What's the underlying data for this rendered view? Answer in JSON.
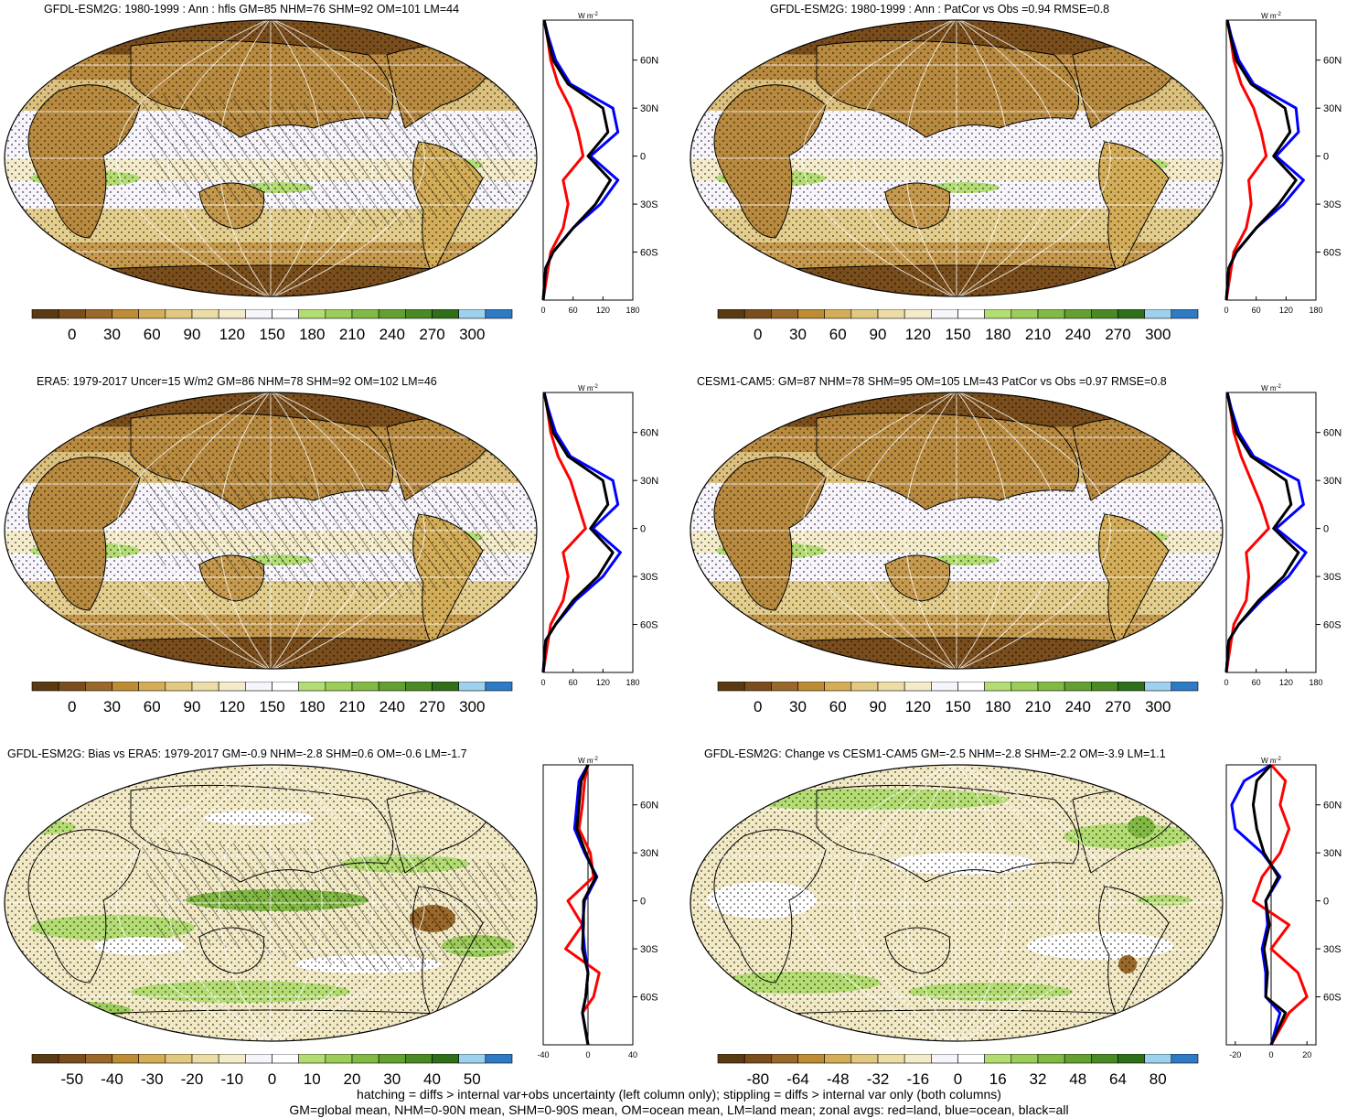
{
  "panels": [
    {
      "id": "p1",
      "title": "GFDL-ESM2G: 1980-1999 : Ann : hfls GM=85 NHM=76 SHM=92 OM=101 LM=44",
      "kind": "climo",
      "hatched": true,
      "zonal": {
        "xlim": [
          0,
          180
        ],
        "xticks": [
          "0",
          "60",
          "120",
          "180"
        ],
        "unit": "W m-2",
        "lat": [
          -90,
          -70,
          -60,
          -45,
          -30,
          -15,
          0,
          15,
          30,
          45,
          60,
          75,
          85
        ],
        "land": [
          0,
          10,
          15,
          40,
          50,
          40,
          80,
          70,
          55,
          30,
          15,
          8,
          2
        ],
        "ocean": [
          0,
          5,
          20,
          60,
          115,
          150,
          95,
          150,
          140,
          55,
          25,
          10,
          2
        ],
        "all": [
          0,
          5,
          20,
          60,
          105,
          135,
          90,
          130,
          120,
          50,
          20,
          8,
          2
        ]
      },
      "colorbar": [
        "0",
        "30",
        "60",
        "90",
        "120",
        "150",
        "180",
        "210",
        "240",
        "270",
        "300"
      ]
    },
    {
      "id": "p2",
      "title": "GFDL-ESM2G: 1980-1999 : Ann : PatCor vs Obs =0.94 RMSE=0.8",
      "kind": "climo",
      "hatched": false,
      "zonal": {
        "xlim": [
          0,
          180
        ],
        "xticks": [
          "0",
          "60",
          "120",
          "180"
        ],
        "unit": "W m-2",
        "lat": [
          -90,
          -70,
          -60,
          -45,
          -30,
          -15,
          0,
          15,
          30,
          45,
          60,
          75,
          85
        ],
        "land": [
          0,
          10,
          15,
          40,
          50,
          45,
          80,
          70,
          55,
          30,
          15,
          8,
          2
        ],
        "ocean": [
          0,
          5,
          20,
          60,
          115,
          155,
          100,
          145,
          140,
          55,
          25,
          10,
          2
        ],
        "all": [
          0,
          5,
          20,
          60,
          105,
          140,
          95,
          128,
          118,
          50,
          20,
          8,
          2
        ]
      },
      "colorbar": [
        "0",
        "30",
        "60",
        "90",
        "120",
        "150",
        "180",
        "210",
        "240",
        "270",
        "300"
      ]
    },
    {
      "id": "p3",
      "title": "ERA5: 1979-2017 Uncer=15 W/m2 GM=86 NHM=78 SHM=92 OM=102 LM=46",
      "kind": "climo",
      "hatched": true,
      "zonal": {
        "xlim": [
          0,
          180
        ],
        "xticks": [
          "0",
          "60",
          "120",
          "180"
        ],
        "unit": "W m-2",
        "lat": [
          -90,
          -70,
          -60,
          -45,
          -30,
          -15,
          0,
          15,
          30,
          45,
          60,
          75,
          85
        ],
        "land": [
          0,
          10,
          15,
          40,
          50,
          40,
          85,
          70,
          55,
          30,
          15,
          8,
          2
        ],
        "ocean": [
          0,
          5,
          25,
          65,
          120,
          155,
          100,
          150,
          140,
          55,
          25,
          10,
          2
        ],
        "all": [
          0,
          5,
          25,
          60,
          110,
          140,
          95,
          130,
          120,
          50,
          20,
          8,
          2
        ]
      },
      "colorbar": [
        "0",
        "30",
        "60",
        "90",
        "120",
        "150",
        "180",
        "210",
        "240",
        "270",
        "300"
      ]
    },
    {
      "id": "p4",
      "title": "CESM1-CAM5: GM=87 NHM=78 SHM=95 OM=105 LM=43 PatCor vs Obs =0.97 RMSE=0.8",
      "kind": "climo",
      "hatched": false,
      "zonal": {
        "xlim": [
          0,
          180
        ],
        "xticks": [
          "0",
          "60",
          "120",
          "180"
        ],
        "unit": "W m-2",
        "lat": [
          -90,
          -70,
          -60,
          -45,
          -30,
          -15,
          0,
          15,
          30,
          45,
          60,
          75,
          85
        ],
        "land": [
          0,
          10,
          15,
          40,
          45,
          40,
          85,
          70,
          50,
          30,
          15,
          8,
          2
        ],
        "ocean": [
          0,
          5,
          25,
          70,
          125,
          160,
          100,
          155,
          145,
          55,
          25,
          10,
          2
        ],
        "all": [
          0,
          5,
          25,
          65,
          115,
          145,
          95,
          130,
          120,
          50,
          20,
          8,
          2
        ]
      },
      "colorbar": [
        "0",
        "30",
        "60",
        "90",
        "120",
        "150",
        "180",
        "210",
        "240",
        "270",
        "300"
      ]
    },
    {
      "id": "p5",
      "title": "GFDL-ESM2G: Bias vs ERA5: 1979-2017 GM=-0.9 NHM=-2.8 SHM=0.6 OM=-0.6 LM=-1.7",
      "kind": "bias",
      "hatched": true,
      "zonal": {
        "xlim": [
          -40,
          40
        ],
        "xticks": [
          "-40",
          "0",
          "40"
        ],
        "unit": "W m-2",
        "lat": [
          -90,
          -70,
          -60,
          -45,
          -30,
          -15,
          0,
          15,
          30,
          45,
          60,
          75,
          85
        ],
        "land": [
          0,
          -5,
          5,
          10,
          -20,
          -5,
          -18,
          5,
          2,
          -8,
          -5,
          -3,
          0
        ],
        "ocean": [
          0,
          -5,
          -2,
          0,
          -3,
          -5,
          -3,
          8,
          -3,
          -12,
          -10,
          -8,
          0
        ],
        "all": [
          0,
          -5,
          -2,
          0,
          -5,
          -4,
          -4,
          7,
          -2,
          -10,
          -8,
          -6,
          0
        ]
      },
      "colorbar": [
        "-50",
        "-40",
        "-30",
        "-20",
        "-10",
        "0",
        "10",
        "20",
        "30",
        "40",
        "50"
      ]
    },
    {
      "id": "p6",
      "title": "GFDL-ESM2G: Change vs CESM1-CAM5 GM=-2.5 NHM=-2.8 SHM=-2.2 OM=-3.9 LM=1.1",
      "kind": "change",
      "hatched": false,
      "zonal": {
        "xlim": [
          -25,
          25
        ],
        "xticks": [
          "-20",
          "0",
          "20"
        ],
        "unit": "W m-2",
        "lat": [
          -90,
          -70,
          -60,
          -45,
          -30,
          -15,
          0,
          15,
          30,
          45,
          60,
          75,
          85
        ],
        "land": [
          0,
          10,
          20,
          15,
          0,
          10,
          -10,
          -5,
          5,
          10,
          5,
          8,
          0
        ],
        "ocean": [
          0,
          5,
          -3,
          -3,
          -5,
          -2,
          -3,
          5,
          -5,
          -20,
          -22,
          -15,
          0
        ],
        "all": [
          0,
          8,
          -3,
          -2,
          -4,
          -1,
          -3,
          4,
          -4,
          -8,
          -10,
          -8,
          0
        ]
      },
      "colorbar": [
        "-80",
        "-64",
        "-48",
        "-32",
        "-16",
        "0",
        "16",
        "32",
        "48",
        "64",
        "80"
      ]
    }
  ],
  "lat_labels": [
    "60N",
    "30N",
    "0",
    "30S",
    "60S"
  ],
  "footnote": [
    "hatching = diffs > internal var+obs uncertainty (left column only); stippling = diffs > internal var only (both columns)",
    "GM=global mean, NHM=0-90N mean, SHM=0-90S mean, OM=ocean mean, LM=land mean; zonal avgs: red=land, blue=ocean, black=all"
  ],
  "colors": {
    "land_line": "#ff0000",
    "ocean_line": "#0000ff",
    "all_line": "#000000",
    "brown_green_scale": [
      "#5a3a12",
      "#7a4e1c",
      "#99682a",
      "#bd8c35",
      "#d4ad58",
      "#e1c982",
      "#ecdca5",
      "#f3ebca",
      "#f5f5fb",
      "#ffffff",
      "#b3dd72",
      "#9ccc5a",
      "#82b944",
      "#64a031",
      "#4a8a25",
      "#2f6f1a",
      "#9dd2ee",
      "#2e7ac4"
    ]
  }
}
